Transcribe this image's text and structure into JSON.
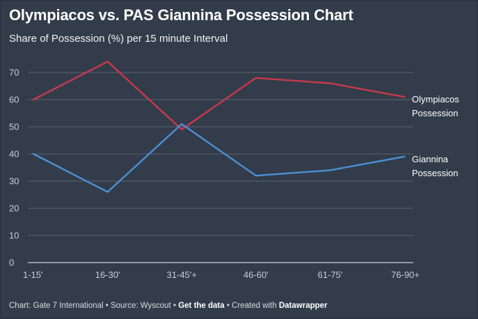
{
  "title": "Olympiacos vs. PAS Giannina Possession Chart",
  "subtitle": "Share of Possession (%) per 15 minute Interval",
  "footer": {
    "chart_prefix": "Chart: Gate 7 International",
    "separator": " • ",
    "source": "Source: Wyscout",
    "get_data": "Get the data",
    "created_with": "Created with ",
    "tool": "Datawrapper"
  },
  "colors": {
    "background": "#333c4a",
    "olympiacos": "#c9394b",
    "giannina": "#4a90d6",
    "grid": "#6b7380"
  },
  "chart_data": {
    "type": "line",
    "title": "Olympiacos vs. PAS Giannina Possession Chart",
    "subtitle": "Share of Possession (%) per 15 minute Interval",
    "categories": [
      "1-15'",
      "16-30'",
      "31-45'+",
      "46-60'",
      "61-75'",
      "76-90+"
    ],
    "yticks": [
      0,
      10,
      20,
      30,
      40,
      50,
      60,
      70
    ],
    "ylim": [
      0,
      70
    ],
    "grid": true,
    "legend_placement": "right, direct labels",
    "series": [
      {
        "name": "Olympiacos Possession",
        "name_lines": [
          "Olympiacos",
          "Possession"
        ],
        "color": "#c9394b",
        "values": [
          60,
          74,
          49,
          68,
          66,
          61
        ]
      },
      {
        "name": "Giannina Possession",
        "name_lines": [
          "Giannina",
          "Possession"
        ],
        "color": "#4a90d6",
        "values": [
          40,
          26,
          51,
          32,
          34,
          39
        ]
      }
    ]
  }
}
